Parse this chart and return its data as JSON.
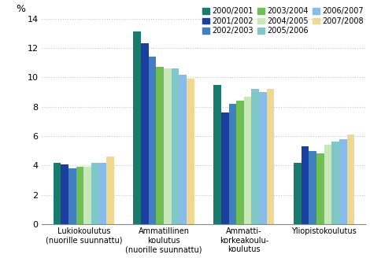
{
  "categories": [
    "Lukiokoulutus\n(nuorille suunnattu)",
    "Ammatillinen\nkoulutus\n(nuorille suunnattu)",
    "Ammatti-\nkorkeakoulu-\nkoulutus",
    "Yliopistokoulutus"
  ],
  "series": {
    "2000/2001": [
      4.2,
      13.1,
      9.5,
      4.2
    ],
    "2001/2002": [
      4.1,
      12.3,
      7.6,
      5.3
    ],
    "2002/2003": [
      3.8,
      11.4,
      8.2,
      5.0
    ],
    "2003/2004": [
      3.9,
      10.7,
      8.4,
      4.8
    ],
    "2004/2005": [
      3.9,
      10.6,
      8.7,
      5.4
    ],
    "2005/2006": [
      4.2,
      10.6,
      9.2,
      5.6
    ],
    "2006/2007": [
      4.2,
      10.2,
      9.0,
      5.8
    ],
    "2007/2008": [
      4.6,
      9.9,
      9.2,
      6.1
    ]
  },
  "colors": {
    "2000/2001": "#1a7a6e",
    "2001/2002": "#1a3f9e",
    "2002/2003": "#4080c0",
    "2003/2004": "#70bf55",
    "2004/2005": "#c8e8b8",
    "2005/2006": "#80c8c8",
    "2006/2007": "#88bce8",
    "2007/2008": "#f0d890"
  },
  "ylabel": "%",
  "ylim": [
    0,
    14
  ],
  "yticks": [
    0,
    2,
    4,
    6,
    8,
    10,
    12,
    14
  ],
  "legend_order": [
    "2000/2001",
    "2001/2002",
    "2002/2003",
    "2003/2004",
    "2004/2005",
    "2005/2006",
    "2006/2007",
    "2007/2008"
  ],
  "background_color": "#ffffff",
  "grid_color": "#c8c8c8"
}
